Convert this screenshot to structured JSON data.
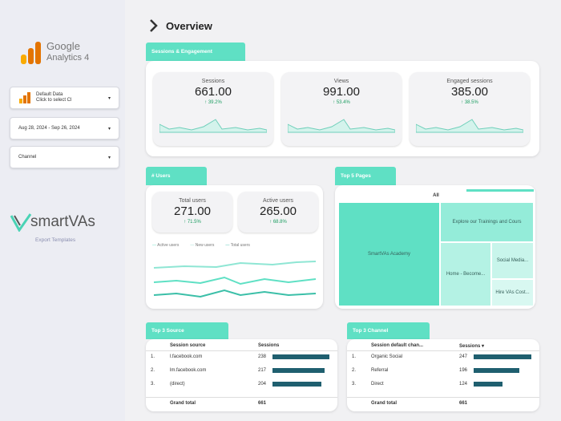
{
  "header": {
    "title": "Overview"
  },
  "sidebar": {
    "logo": {
      "brand": "Google",
      "product": "Analytics 4"
    },
    "filters": [
      {
        "label": "Default Data",
        "sublabel": "Click to select Cl"
      },
      {
        "label": "Aug 28, 2024 - Sep 26, 2024"
      },
      {
        "label": "Channel"
      }
    ],
    "footer_logo": "smartVAs",
    "footer_sub": "Export Templates"
  },
  "sessions_engagement": {
    "title": "Sessions & Engagement",
    "kpis": [
      {
        "label": "Sessions",
        "value": "661.00",
        "change": "↑ 39.2%"
      },
      {
        "label": "Views",
        "value": "991.00",
        "change": "↑ 53.4%"
      },
      {
        "label": "Engaged sessions",
        "value": "385.00",
        "change": "↑ 38.5%"
      }
    ]
  },
  "users": {
    "title": "# Users",
    "kpis": [
      {
        "label": "Total users",
        "value": "271.00",
        "change": "↑ 71.5%"
      },
      {
        "label": "Active users",
        "value": "265.00",
        "change": "↑ 68.8%"
      }
    ],
    "legend": [
      "Active users",
      "New users",
      "Total users"
    ]
  },
  "top_pages": {
    "title": "Top 5 Pages",
    "root": "All",
    "items": [
      "SmartVAs Academy",
      "Explore our Trainings and Cours",
      "Home - Become...",
      "Social Media...",
      "Hire VAs Cost..."
    ]
  },
  "top_source": {
    "title": "Top 3 Source",
    "columns": [
      "Session source",
      "Sessions"
    ],
    "rows": [
      {
        "rank": "1.",
        "name": "l.facebook.com",
        "value": 238
      },
      {
        "rank": "2.",
        "name": "lm.facebook.com",
        "value": 217
      },
      {
        "rank": "3.",
        "name": "(direct)",
        "value": 204
      }
    ],
    "total_label": "Grand total",
    "total": 661
  },
  "top_channel": {
    "title": "Top 3 Channel",
    "columns": [
      "Session default chan...",
      "Sessions ▾"
    ],
    "rows": [
      {
        "rank": "1.",
        "name": "Organic Social",
        "value": 247
      },
      {
        "rank": "2.",
        "name": "Referral",
        "value": 196
      },
      {
        "rank": "3.",
        "name": "Direct",
        "value": 124
      }
    ],
    "total_label": "Grand total",
    "total": 661
  }
}
